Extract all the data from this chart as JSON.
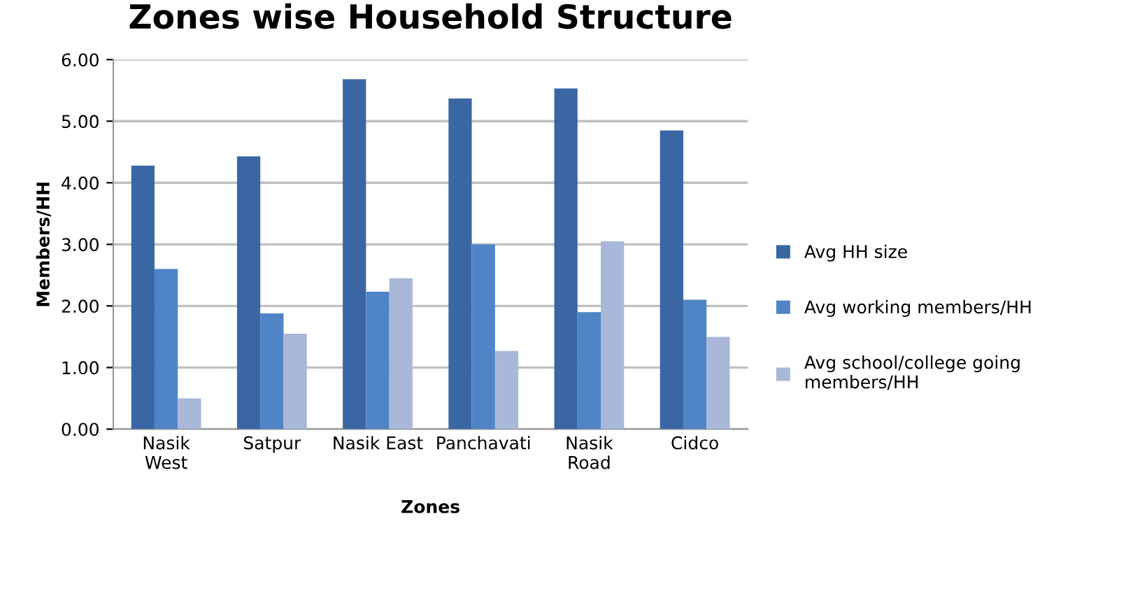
{
  "chart_data": {
    "type": "bar",
    "title": "Zones wise Household Structure",
    "xlabel": "Zones",
    "ylabel": "Members/HH",
    "categories": [
      "Nasik\nWest",
      "Satpur",
      "Nasik East",
      "Panchavati",
      "Nasik\nRoad",
      "Cidco"
    ],
    "series": [
      {
        "name": "Avg HH size",
        "color": "#3a67a3",
        "values": [
          4.28,
          4.43,
          5.68,
          5.37,
          5.53,
          4.85
        ]
      },
      {
        "name": "Avg working members/HH",
        "color": "#4f85c6",
        "values": [
          2.6,
          1.88,
          2.23,
          3.0,
          1.9,
          2.1
        ]
      },
      {
        "name": "Avg school/college going\nmembers/HH",
        "color": "#a9b8d8",
        "values": [
          0.5,
          1.55,
          2.45,
          1.27,
          3.05,
          1.5
        ]
      }
    ],
    "ylim": [
      0,
      6
    ],
    "yticks": [
      {
        "value": 0,
        "label": "0.00"
      },
      {
        "value": 1,
        "label": "1.00"
      },
      {
        "value": 2,
        "label": "2.00"
      },
      {
        "value": 3,
        "label": "3.00"
      },
      {
        "value": 4,
        "label": "4.00"
      },
      {
        "value": 5,
        "label": "5.00"
      },
      {
        "value": 6,
        "label": "6.00"
      }
    ],
    "grid": "y",
    "legend": "right"
  }
}
